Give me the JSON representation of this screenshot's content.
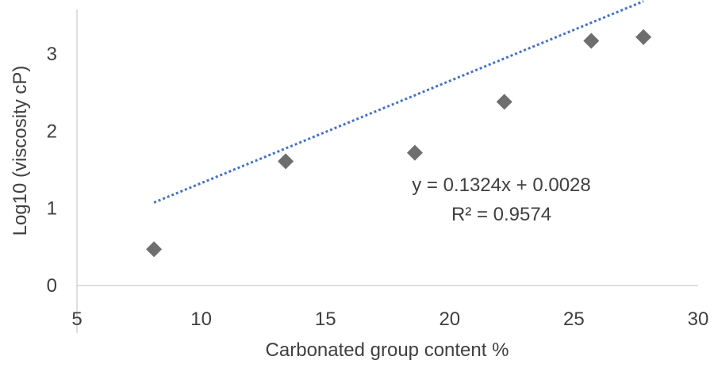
{
  "chart_data": {
    "type": "scatter",
    "title": "",
    "xlabel": "Carbonated group content %",
    "ylabel": "Log10 (viscosity cP)",
    "xlim": [
      5,
      30
    ],
    "ylim": [
      0,
      3.5
    ],
    "x_ticks": [
      5,
      10,
      15,
      20,
      25,
      30
    ],
    "y_ticks": [
      0,
      1,
      2,
      3
    ],
    "grid": false,
    "legend": "none",
    "series": [
      {
        "name": "",
        "marker": "diamond",
        "color": "#6E6E6E",
        "points": [
          {
            "x": 8.1,
            "y": 0.47
          },
          {
            "x": 13.4,
            "y": 1.61
          },
          {
            "x": 18.6,
            "y": 1.72
          },
          {
            "x": 22.2,
            "y": 2.38
          },
          {
            "x": 25.7,
            "y": 3.17
          },
          {
            "x": 27.8,
            "y": 3.22
          }
        ]
      }
    ],
    "trendline": {
      "type": "linear",
      "style": "dotted",
      "color": "#4472C4",
      "slope": 0.1324,
      "intercept": 0.0028,
      "x_range": [
        8.1,
        27.8
      ]
    },
    "annotations": {
      "equation": "y = 0.1324x + 0.0028",
      "r_squared": "R² = 0.9574"
    },
    "axis_color": "#BFBFBF",
    "text_color": "#404040"
  }
}
